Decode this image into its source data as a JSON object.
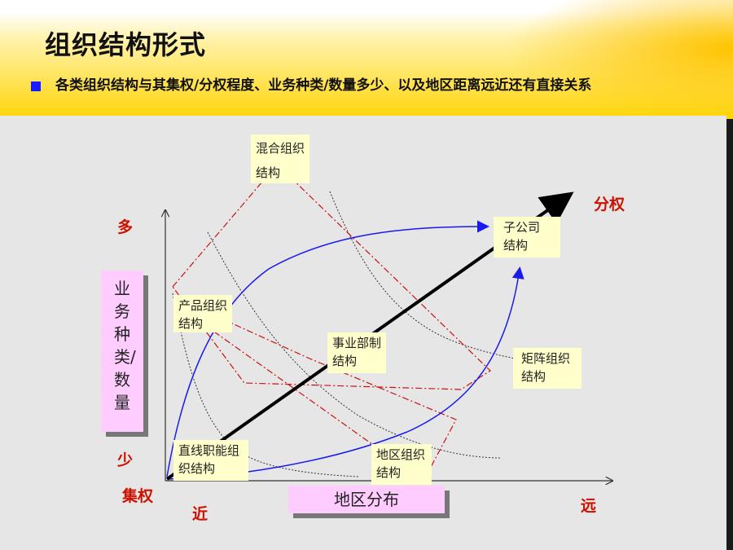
{
  "slide": {
    "title": "组织结构形式",
    "subtitle": "各类组织结构与其集权/分权程度、业务种类/数量多少、以及地区距离远近还有直接关系"
  },
  "axes": {
    "y_top": "多",
    "y_bottom": "少",
    "origin": "集权",
    "x_near": "近",
    "x_far": "远",
    "diagonal_end": "分权",
    "y_axis_label": "业务种类/数量",
    "x_axis_label": "地区分布"
  },
  "structures": {
    "mixed": "混合组织结构",
    "product": "产品组织结构",
    "subsidiary": "子公司结构",
    "division": "事业部制结构",
    "matrix": "矩阵组织结构",
    "line_function": "直线职能组织结构",
    "regional": "地区组织结构"
  },
  "colors": {
    "banner_yellow": "#ffd400",
    "panel_gray": "#e6e6e6",
    "accent_red": "#cc1100",
    "curve_blue": "#1a1aee",
    "dashdot_red": "#cc1111",
    "box_yellow": "#ffffcc",
    "box_pink": "#ffccff",
    "bullet_blue": "#1a1aff"
  }
}
